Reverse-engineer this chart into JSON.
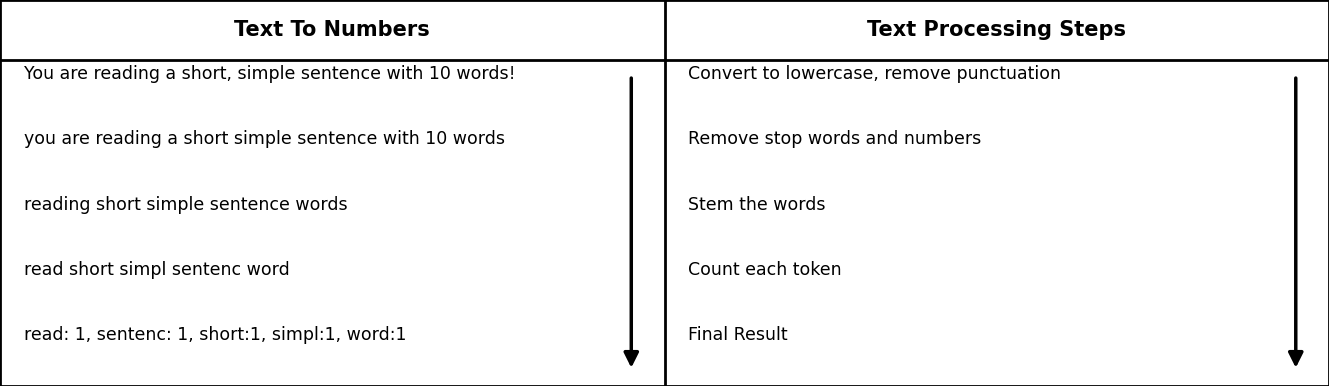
{
  "title_left": "Text To Numbers",
  "title_right": "Text Processing Steps",
  "left_rows": [
    "You are reading a short, simple sentence with 10 words!",
    "you are reading a short simple sentence with 10 words",
    "reading short simple sentence words",
    "read short simpl sentenc word",
    "read: 1, sentenc: 1, short:1, simpl:1, word:1"
  ],
  "right_rows": [
    "Convert to lowercase, remove punctuation",
    "Remove stop words and numbers",
    "Stem the words",
    "Count each token",
    "Final Result"
  ],
  "background_color": "#ffffff",
  "border_color": "#000000",
  "text_color": "#000000",
  "title_fontsize": 15,
  "body_fontsize": 12.5,
  "fig_width": 13.29,
  "fig_height": 3.86
}
